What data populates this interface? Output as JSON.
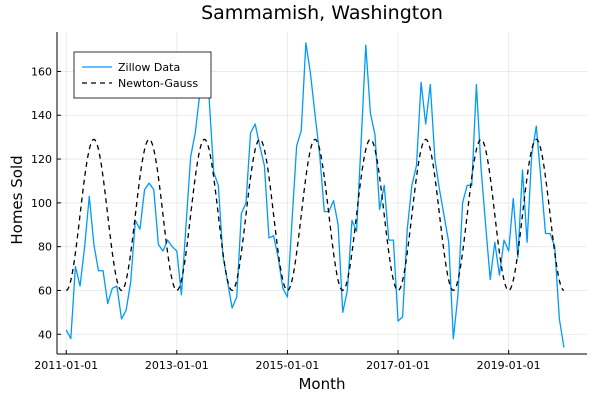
{
  "chart_data": {
    "type": "line",
    "title": "Sammamish, Washington",
    "xlabel": "Month",
    "ylabel": "Homes Sold",
    "xlim": [
      "2010-11-01",
      "2020-06-01"
    ],
    "ylim": [
      31,
      178
    ],
    "x_ticks": [
      "2011-01-01",
      "2013-01-01",
      "2015-01-01",
      "2017-01-01",
      "2019-01-01"
    ],
    "y_ticks": [
      40,
      60,
      80,
      100,
      120,
      140,
      160
    ],
    "grid": true,
    "legend_position": "top-left",
    "series": [
      {
        "name": "Zillow Data",
        "color": "#009af9",
        "dash": "solid",
        "start": "2011-01-01",
        "step": "month",
        "values": [
          42,
          38,
          71,
          62,
          80,
          103,
          81,
          69,
          69,
          54,
          61,
          62,
          47,
          51,
          64,
          92,
          88,
          106,
          109,
          106,
          81,
          78,
          83,
          80,
          78,
          58,
          90,
          121,
          132,
          150,
          155,
          148,
          114,
          108,
          76,
          64,
          52,
          57,
          95,
          100,
          132,
          136,
          126,
          117,
          84,
          85,
          75,
          61,
          57,
          92,
          126,
          133,
          173,
          159,
          140,
          122,
          96,
          96,
          101,
          90,
          50,
          60,
          92,
          87,
          128,
          172,
          141,
          131,
          97,
          108,
          83,
          83,
          46,
          48,
          88,
          108,
          117,
          155,
          136,
          154,
          120,
          106,
          94,
          82,
          38,
          58,
          100,
          108,
          108,
          154,
          116,
          90,
          65,
          82,
          67,
          83,
          78,
          102,
          75,
          115,
          82,
          122,
          135,
          111,
          86,
          86,
          80,
          47,
          34
        ]
      },
      {
        "name": "Newton-Gauss",
        "color": "#000000",
        "dash": "dashed",
        "start": "2011-01-01",
        "step": "month",
        "period_months": 12,
        "mean": 94.5,
        "amplitude": 34.5,
        "peak_month_offset": 6,
        "end": "2020-01-01"
      }
    ]
  }
}
